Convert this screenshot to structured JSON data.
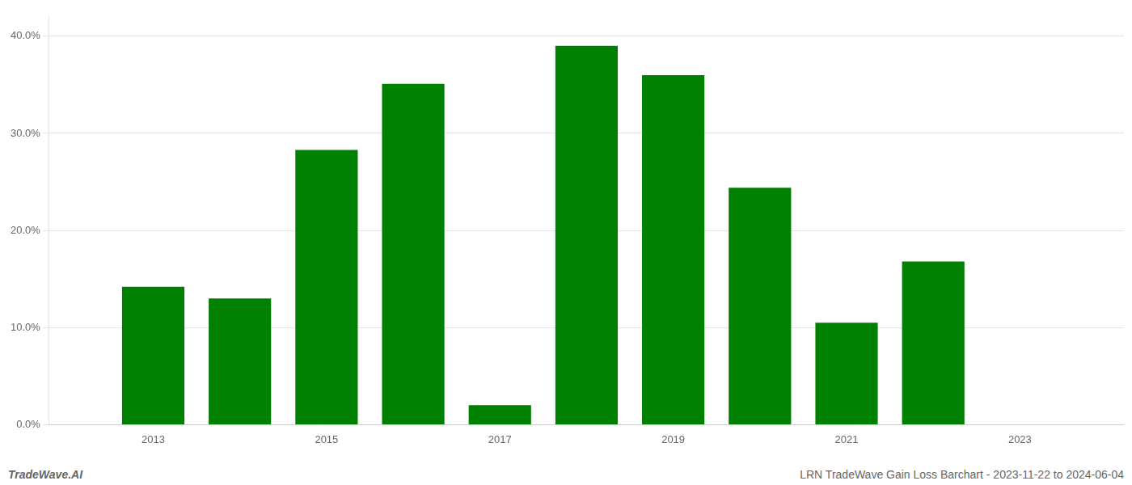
{
  "chart_data": {
    "type": "bar",
    "x": [
      2013,
      2014,
      2015,
      2016,
      2017,
      2018,
      2019,
      2020,
      2021,
      2022,
      2023
    ],
    "values": [
      0.142,
      0.13,
      0.283,
      0.351,
      0.02,
      0.39,
      0.36,
      0.244,
      0.105,
      0.168,
      0.0
    ],
    "color": "#008000",
    "xlim": [
      2011.8,
      2024.2
    ],
    "xticks": [
      2013,
      2015,
      2017,
      2019,
      2021,
      2023
    ],
    "ylim": [
      0,
      0.42
    ],
    "yticks": [
      {
        "value": 0.0,
        "label": "0.0%"
      },
      {
        "value": 0.1,
        "label": "10.0%"
      },
      {
        "value": 0.2,
        "label": "20.0%"
      },
      {
        "value": 0.3,
        "label": "30.0%"
      },
      {
        "value": 0.4,
        "label": "40.0%"
      }
    ],
    "grid": "y",
    "annotations": [
      "TradeWave.AI",
      "LRN TradeWave Gain Loss Barchart - 2023-11-22 to 2024-06-04"
    ]
  }
}
